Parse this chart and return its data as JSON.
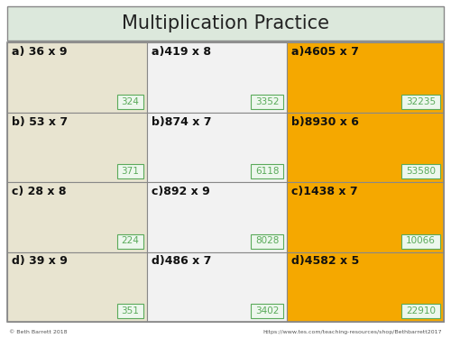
{
  "title": "Multiplication Practice",
  "title_bg": "#dce8dc",
  "col_colors": [
    "#e8e4d0",
    "#f2f2f2",
    "#f5a800"
  ],
  "answer_box_bg": "#edf7ed",
  "answer_box_border": "#5aaa5a",
  "answer_text_color": "#5aaa5a",
  "question_text_color": "#111111",
  "border_color": "#888888",
  "rows": [
    {
      "questions": [
        "a) 36 x 9",
        "a)419 x 8",
        "a)4605 x 7"
      ],
      "answers": [
        "324",
        "3352",
        "32235"
      ]
    },
    {
      "questions": [
        "b) 53 x 7",
        "b)874 x 7",
        "b)8930 x 6"
      ],
      "answers": [
        "371",
        "6118",
        "53580"
      ]
    },
    {
      "questions": [
        "c) 28 x 8",
        "c)892 x 9",
        "c)1438 x 7"
      ],
      "answers": [
        "224",
        "8028",
        "10066"
      ]
    },
    {
      "questions": [
        "d) 39 x 9",
        "d)486 x 7",
        "d)4582 x 5"
      ],
      "answers": [
        "351",
        "3402",
        "22910"
      ]
    }
  ],
  "footer_left": "© Beth Barrett 2018",
  "footer_right": "https://www.tes.com/teaching-resources/shop/Bethbarrett2017"
}
